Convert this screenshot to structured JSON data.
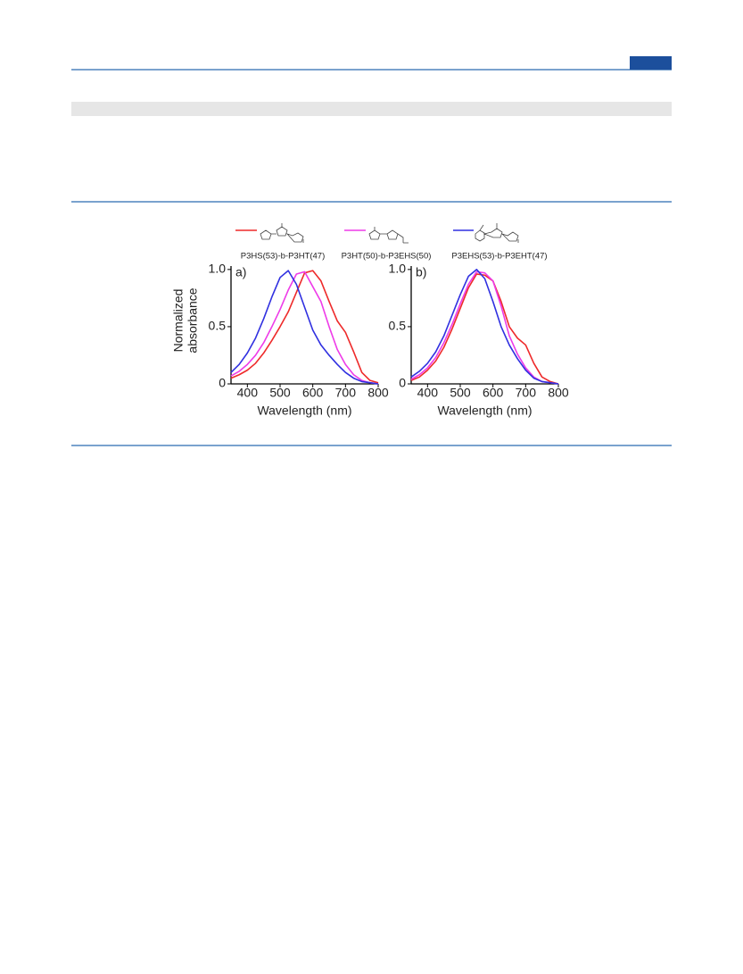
{
  "chart_data": [
    {
      "type": "line",
      "panel_label": "a)",
      "ylabel": [
        "Normalized",
        "absorbance"
      ],
      "xlabel": "Wavelength (nm)",
      "x": [
        350,
        375,
        400,
        425,
        450,
        475,
        500,
        525,
        550,
        575,
        600,
        625,
        650,
        675,
        700,
        725,
        750,
        775,
        800
      ],
      "xlim": [
        350,
        800
      ],
      "ylim": [
        0,
        1.03
      ],
      "xticks": [
        400,
        500,
        600,
        700,
        800
      ],
      "yticks": [
        0,
        0.5,
        {
          "value": 1,
          "label": "1.0"
        }
      ],
      "series": [
        {
          "name": "P3HS(53)-b-P3HT(47)",
          "color": "#ee2a2a",
          "values": [
            0.05,
            0.08,
            0.12,
            0.18,
            0.27,
            0.38,
            0.5,
            0.63,
            0.8,
            0.97,
            0.99,
            0.9,
            0.72,
            0.55,
            0.45,
            0.28,
            0.1,
            0.03,
            0.01
          ]
        },
        {
          "name": "P3HT(50)-b-P3EHS(50)",
          "color": "#ee3be8",
          "values": [
            0.07,
            0.11,
            0.17,
            0.25,
            0.36,
            0.5,
            0.65,
            0.82,
            0.96,
            0.98,
            0.85,
            0.72,
            0.5,
            0.3,
            0.17,
            0.08,
            0.03,
            0.01,
            0
          ]
        },
        {
          "name": "P3EHS(53)-b-P3EHT(47)",
          "color": "#3030e0",
          "values": [
            0.1,
            0.17,
            0.27,
            0.4,
            0.57,
            0.76,
            0.93,
            0.99,
            0.87,
            0.67,
            0.47,
            0.34,
            0.25,
            0.17,
            0.1,
            0.05,
            0.02,
            0.01,
            0
          ]
        }
      ]
    },
    {
      "type": "line",
      "panel_label": "b)",
      "xlabel": "Wavelength (nm)",
      "x": [
        350,
        375,
        400,
        425,
        450,
        475,
        500,
        525,
        550,
        575,
        600,
        625,
        650,
        675,
        700,
        725,
        750,
        775,
        800
      ],
      "xlim": [
        350,
        800
      ],
      "ylim": [
        0,
        1.03
      ],
      "xticks": [
        400,
        500,
        600,
        700,
        800
      ],
      "yticks": [
        0,
        0.5,
        {
          "value": 1,
          "label": "1.0"
        }
      ],
      "series": [
        {
          "color": "#ee2a2a",
          "values": [
            0.03,
            0.06,
            0.12,
            0.2,
            0.32,
            0.48,
            0.66,
            0.84,
            0.96,
            0.95,
            0.9,
            0.72,
            0.5,
            0.4,
            0.34,
            0.18,
            0.06,
            0.02,
            0
          ]
        },
        {
          "color": "#ee3be8",
          "values": [
            0.04,
            0.08,
            0.14,
            0.23,
            0.36,
            0.52,
            0.7,
            0.87,
            0.98,
            0.97,
            0.9,
            0.68,
            0.42,
            0.26,
            0.14,
            0.06,
            0.02,
            0.01,
            0
          ]
        },
        {
          "color": "#3030e0",
          "values": [
            0.06,
            0.11,
            0.18,
            0.28,
            0.42,
            0.6,
            0.78,
            0.94,
            1.0,
            0.92,
            0.72,
            0.5,
            0.34,
            0.22,
            0.12,
            0.05,
            0.02,
            0.01,
            0
          ]
        }
      ]
    }
  ]
}
